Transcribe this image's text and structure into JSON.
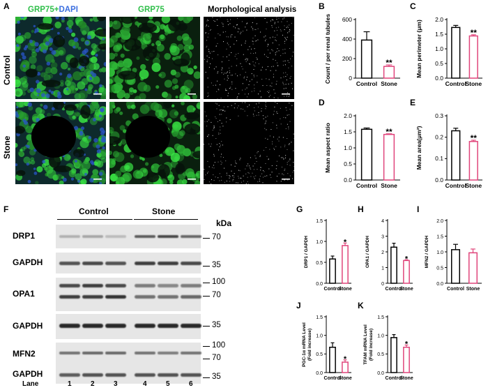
{
  "panels": {
    "a": "A",
    "b": "B",
    "c": "C",
    "d": "D",
    "e": "E",
    "f": "F",
    "g": "G",
    "h": "H",
    "i": "I",
    "j": "J",
    "k": "K"
  },
  "microscopy": {
    "col_headers": {
      "merge_grp75": "GRP75",
      "merge_plus": "+",
      "merge_dapi": "DAPI",
      "grp75": "GRP75",
      "morph": "Morphological analysis"
    },
    "row_headers": [
      "Control",
      "Stone"
    ],
    "colors": {
      "grp75": "#2fbf4a",
      "dapi": "#3c6fe0"
    }
  },
  "western_blot": {
    "group_labels": [
      "Control",
      "Stone"
    ],
    "unit": "kDa",
    "rows": [
      {
        "protein": "DRP1",
        "markers": [
          "70"
        ]
      },
      {
        "protein": "GAPDH",
        "markers": [
          "35"
        ]
      },
      {
        "protein": "OPA1",
        "markers": [
          "100",
          "70"
        ]
      },
      {
        "protein": "GAPDH",
        "markers": [
          "35"
        ]
      },
      {
        "protein": "MFN2",
        "markers": [
          "100",
          "70"
        ]
      },
      {
        "protein": "GAPDH",
        "markers": [
          "35"
        ]
      }
    ],
    "lane_label": "Lane",
    "lanes": [
      "1",
      "2",
      "3",
      "4",
      "5",
      "6"
    ],
    "band_intensity": {
      "DRP1": [
        0.25,
        0.3,
        0.2,
        0.65,
        0.75,
        0.6
      ],
      "GAPDH_1": [
        0.7,
        0.75,
        0.7,
        0.8,
        0.8,
        0.75
      ],
      "OPA1_upper": [
        0.75,
        0.8,
        0.75,
        0.5,
        0.45,
        0.5
      ],
      "OPA1_lower": [
        0.8,
        0.8,
        0.85,
        0.55,
        0.55,
        0.6
      ],
      "GAPDH_2": [
        0.9,
        0.9,
        0.9,
        0.9,
        0.9,
        0.9
      ],
      "MFN2": [
        0.55,
        0.6,
        0.6,
        0.55,
        0.5,
        0.55
      ],
      "GAPDH_3": [
        0.65,
        0.7,
        0.7,
        0.7,
        0.7,
        0.7
      ]
    }
  },
  "chart_data": [
    {
      "id": "B",
      "type": "bar",
      "categories": [
        "Control",
        "Stone"
      ],
      "values": [
        390,
        120
      ],
      "errors": [
        85,
        15
      ],
      "ylabel": "Count / per renal tubules",
      "ylim": [
        0,
        600
      ],
      "yticks": [
        "0",
        "200",
        "400",
        "600"
      ],
      "sig": [
        "",
        "**"
      ]
    },
    {
      "id": "C",
      "type": "bar",
      "categories": [
        "Control",
        "Stone"
      ],
      "values": [
        1.73,
        1.44
      ],
      "errors": [
        0.07,
        0.04
      ],
      "ylabel": "Mean perimeter (μm)",
      "ylim": [
        0,
        2.0
      ],
      "yticks": [
        "0.0",
        "0.5",
        "1.0",
        "1.5",
        "2.0"
      ],
      "sig": [
        "",
        "**"
      ]
    },
    {
      "id": "D",
      "type": "bar",
      "categories": [
        "Control",
        "Stone"
      ],
      "values": [
        1.58,
        1.42
      ],
      "errors": [
        0.04,
        0.02
      ],
      "ylabel": "Mean aspect ratio",
      "ylim": [
        0,
        2.0
      ],
      "yticks": [
        "0.0",
        "0.5",
        "1.0",
        "1.5",
        "2.0"
      ],
      "sig": [
        "",
        "**"
      ]
    },
    {
      "id": "E",
      "type": "bar",
      "categories": [
        "Control",
        "Stone"
      ],
      "values": [
        0.23,
        0.18
      ],
      "errors": [
        0.012,
        0.006
      ],
      "ylabel": "Mean area(μm²)",
      "ylim": [
        0,
        0.3
      ],
      "yticks": [
        "0.0",
        "0.1",
        "0.2",
        "0.3"
      ],
      "sig": [
        "",
        "**"
      ]
    },
    {
      "id": "G",
      "type": "bar",
      "categories": [
        "Control",
        "Stone"
      ],
      "values": [
        0.58,
        0.9
      ],
      "errors": [
        0.07,
        0.06
      ],
      "ylabel": "DRP1 / GAPDH",
      "ylim": [
        0,
        1.5
      ],
      "yticks": [
        "0.0",
        "0.5",
        "1.0",
        "1.5"
      ],
      "sig": [
        "",
        "*"
      ]
    },
    {
      "id": "H",
      "type": "bar",
      "categories": [
        "Control",
        "Stone"
      ],
      "values": [
        2.3,
        1.45
      ],
      "errors": [
        0.25,
        0.05
      ],
      "ylabel": "OPA1 / GAPDH",
      "ylim": [
        0,
        4
      ],
      "yticks": [
        "0",
        "1",
        "2",
        "3",
        "4"
      ],
      "sig": [
        "",
        "*"
      ]
    },
    {
      "id": "I",
      "type": "bar",
      "categories": [
        "Control",
        "Stone"
      ],
      "values": [
        1.07,
        0.97
      ],
      "errors": [
        0.17,
        0.12
      ],
      "ylabel": "MFN2 / GAPDH",
      "ylim": [
        0,
        2.0
      ],
      "yticks": [
        "0.0",
        "0.5",
        "1.0",
        "1.5",
        "2.0"
      ],
      "sig": [
        "",
        ""
      ]
    },
    {
      "id": "J",
      "type": "bar",
      "categories": [
        "Control",
        "Stone"
      ],
      "values": [
        0.68,
        0.28
      ],
      "errors": [
        0.12,
        0.06
      ],
      "ylabel": "PGC-1α mRNA Level",
      "ylabel2": "(Fold increase)",
      "ylim": [
        0,
        1.5
      ],
      "yticks": [
        "0.0",
        "0.5",
        "1.0",
        "1.5"
      ],
      "sig": [
        "",
        "*"
      ]
    },
    {
      "id": "K",
      "type": "bar",
      "categories": [
        "Control",
        "Stone"
      ],
      "values": [
        0.94,
        0.68
      ],
      "errors": [
        0.08,
        0.06
      ],
      "ylabel": "TFAM mRNA Level",
      "ylabel2": "(Fold increase)",
      "ylim": [
        0,
        1.5
      ],
      "yticks": [
        "0.0",
        "0.5",
        "1.0",
        "1.5"
      ],
      "sig": [
        "",
        "*"
      ]
    }
  ],
  "colors": {
    "control": "#000000",
    "stone": "#e0457b"
  }
}
